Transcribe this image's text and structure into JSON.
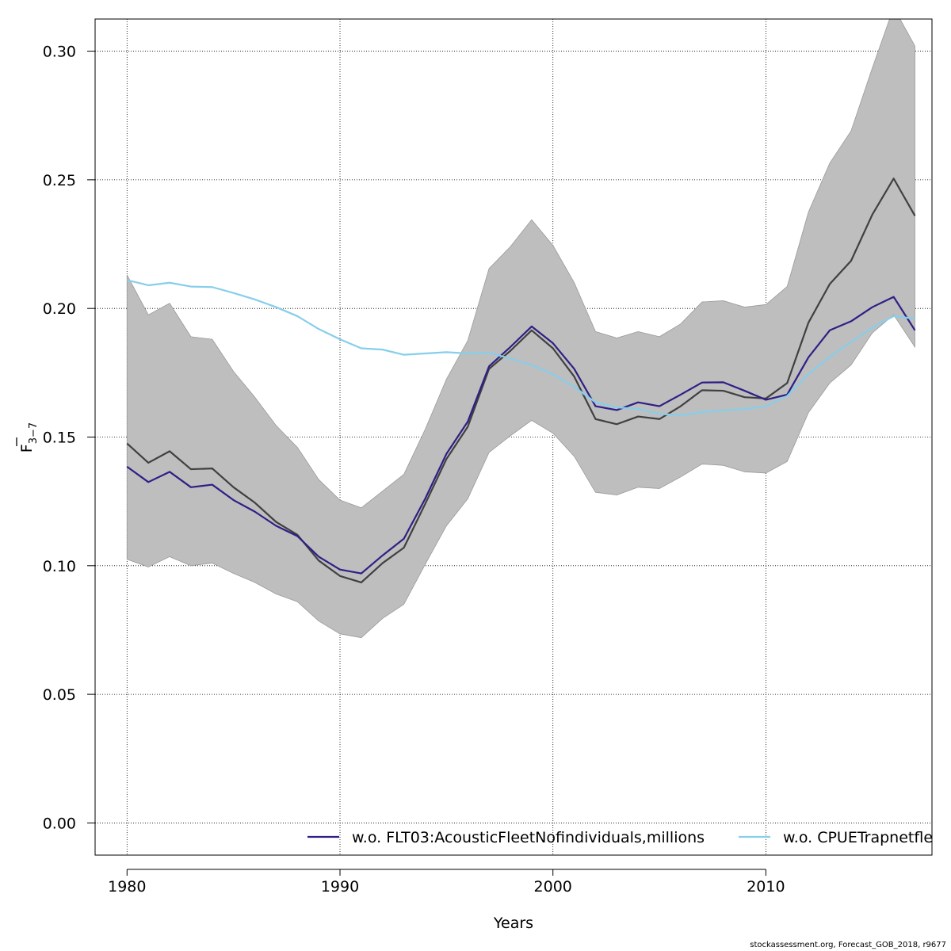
{
  "chart_data": {
    "type": "line",
    "title": "",
    "xlabel": "Years",
    "ylabel_main": "F",
    "ylabel_sub": "3−7",
    "xlim": [
      1978.5,
      2017.8
    ],
    "ylim": [
      -0.0125,
      0.3125
    ],
    "xticks": [
      1980,
      1990,
      2000,
      2010
    ],
    "xtick_labels": [
      "1980",
      "1990",
      "2000",
      "2010"
    ],
    "yticks": [
      0.0,
      0.05,
      0.1,
      0.15,
      0.2,
      0.25,
      0.3
    ],
    "ytick_labels": [
      "0.00",
      "0.05",
      "0.10",
      "0.15",
      "0.20",
      "0.25",
      "0.30"
    ],
    "grid": true,
    "legend_position": "bottom",
    "x": [
      1980,
      1981,
      1982,
      1983,
      1984,
      1985,
      1986,
      1987,
      1988,
      1989,
      1990,
      1991,
      1992,
      1993,
      1994,
      1995,
      1996,
      1997,
      1998,
      1999,
      2000,
      2001,
      2002,
      2003,
      2004,
      2005,
      2006,
      2007,
      2008,
      2009,
      2010,
      2011,
      2012,
      2013,
      2014,
      2015,
      2016,
      2017
    ],
    "band": {
      "color": "#bebebe",
      "lower": [
        0.1025,
        0.0995,
        0.1035,
        0.1,
        0.101,
        0.097,
        0.0935,
        0.089,
        0.086,
        0.0785,
        0.0735,
        0.072,
        0.0795,
        0.085,
        0.1005,
        0.1155,
        0.126,
        0.144,
        0.1505,
        0.1565,
        0.1515,
        0.1425,
        0.1285,
        0.1275,
        0.1305,
        0.13,
        0.1345,
        0.1395,
        0.139,
        0.1365,
        0.136,
        0.1405,
        0.1595,
        0.171,
        0.178,
        0.1905,
        0.1975,
        0.185
      ],
      "upper": [
        0.213,
        0.1975,
        0.202,
        0.189,
        0.188,
        0.1755,
        0.1655,
        0.1545,
        0.146,
        0.1335,
        0.1255,
        0.1225,
        0.129,
        0.1355,
        0.153,
        0.1725,
        0.1875,
        0.2155,
        0.224,
        0.2345,
        0.2245,
        0.21,
        0.191,
        0.1885,
        0.191,
        0.189,
        0.194,
        0.2025,
        0.203,
        0.2005,
        0.2015,
        0.2085,
        0.2375,
        0.2565,
        0.269,
        0.2935,
        0.317,
        0.302
      ]
    },
    "series": [
      {
        "color": "#404040",
        "values": [
          0.1475,
          0.14,
          0.1445,
          0.1375,
          0.1378,
          0.1305,
          0.1245,
          0.117,
          0.112,
          0.102,
          0.096,
          0.0935,
          0.101,
          0.107,
          0.124,
          0.1415,
          0.154,
          0.1765,
          0.1835,
          0.1915,
          0.1845,
          0.1735,
          0.157,
          0.155,
          0.158,
          0.157,
          0.162,
          0.1682,
          0.168,
          0.1655,
          0.165,
          0.171,
          0.1945,
          0.2095,
          0.2185,
          0.2365,
          0.2505,
          0.236
        ]
      },
      {
        "name": "w.o. FLT03:AcousticFleetNofindividuals,millions",
        "color": "#2e1f86",
        "values": [
          0.1385,
          0.1325,
          0.1365,
          0.1305,
          0.1315,
          0.1255,
          0.121,
          0.1155,
          0.1115,
          0.1035,
          0.0985,
          0.097,
          0.104,
          0.1105,
          0.126,
          0.1435,
          0.156,
          0.1775,
          0.185,
          0.193,
          0.1865,
          0.1765,
          0.162,
          0.1605,
          0.1635,
          0.162,
          0.1665,
          0.1712,
          0.1713,
          0.168,
          0.1645,
          0.1665,
          0.181,
          0.1915,
          0.195,
          0.2005,
          0.2045,
          0.1915
        ]
      },
      {
        "name": "w.o. CPUETrapnetfleet",
        "color": "#87ceeb",
        "values": [
          0.211,
          0.209,
          0.21,
          0.2085,
          0.2083,
          0.206,
          0.2035,
          0.2005,
          0.197,
          0.192,
          0.188,
          0.1845,
          0.184,
          0.182,
          0.1825,
          0.183,
          0.1825,
          0.1828,
          0.1805,
          0.178,
          0.1745,
          0.1695,
          0.1635,
          0.1615,
          0.161,
          0.159,
          0.1585,
          0.1597,
          0.1603,
          0.1609,
          0.162,
          0.166,
          0.1745,
          0.1812,
          0.187,
          0.1925,
          0.197,
          0.196
        ]
      }
    ]
  },
  "legend": {
    "items": [
      {
        "label": "w.o. FLT03:AcousticFleetNofindividuals,millions",
        "color": "#2e1f86"
      },
      {
        "label": "w.o. CPUETrapnetfleet",
        "color": "#87ceeb"
      }
    ]
  },
  "footer": "stockassessment.org, Forecast_GOB_2018, r9677"
}
